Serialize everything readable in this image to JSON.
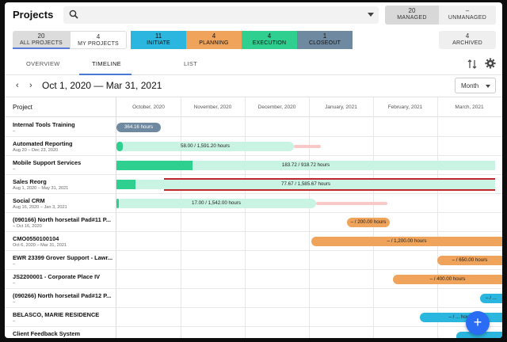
{
  "header": {
    "title": "Projects",
    "search_placeholder": "",
    "managed": {
      "count": "20",
      "label": "MANAGED"
    },
    "unmanaged": {
      "count": "–",
      "label": "UNMANAGED"
    }
  },
  "filters": {
    "all": {
      "count": "20",
      "label": "ALL PROJECTS"
    },
    "mine": {
      "count": "4",
      "label": "MY PROJECTS"
    },
    "initiate": {
      "count": "11",
      "label": "INITIATE",
      "color": "#2bb6e0"
    },
    "planning": {
      "count": "4",
      "label": "PLANNING",
      "color": "#f0a35a"
    },
    "execution": {
      "count": "4",
      "label": "EXECUTION",
      "color": "#2fcf8f"
    },
    "closeout": {
      "count": "1",
      "label": "CLOSEOUT",
      "color": "#6f8aa0"
    },
    "archived": {
      "count": "4",
      "label": "ARCHIVED"
    }
  },
  "tabs": [
    "OVERVIEW",
    "TIMELINE",
    "LIST"
  ],
  "timeline": {
    "range": "Oct 1, 2020 — Mar 31, 2021",
    "scale": "Month",
    "project_col": "Project",
    "months": [
      "October, 2020",
      "November, 2020",
      "December, 2020",
      "January, 2021",
      "February, 2021",
      "March, 2021"
    ]
  },
  "colors": {
    "execution_fill": "#2fcf8f",
    "execution_light": "#c9f3e2",
    "planning": "#f0a35a",
    "initiate": "#2bb6e0",
    "closeout": "#6f8aa0",
    "overdue": "#c0262d",
    "overdue_light": "#f8c9c6"
  },
  "projects": [
    {
      "name": "Internal Tools Training",
      "dates": "–",
      "label": "364.16 hours",
      "status": "closeout"
    },
    {
      "name": "Automated Reporting",
      "dates": "Aug 20 – Dec 23, 2020",
      "label": "58.00 / 1,591.20 hours",
      "status": "execution"
    },
    {
      "name": "Mobile Support Services",
      "dates": "–",
      "label": "183.72 / 918.72 hours",
      "status": "execution"
    },
    {
      "name": "Sales Reorg",
      "dates": "Aug 1, 2020 – May 31, 2021",
      "label": "77.67 / 1,585.67 hours",
      "status": "execution"
    },
    {
      "name": "Social CRM",
      "dates": "Aug 16, 2020 – Jan 3, 2021",
      "label": "17.00 / 1,542.00 hours",
      "status": "execution"
    },
    {
      "name": "(090166) North horsetail Pad#11 P...",
      "dates": "– Oct 16, 2020",
      "label": "– / 200.00 hours",
      "status": "planning"
    },
    {
      "name": "CMO0550100104",
      "dates": "Oct 6, 2020 – Mar 31, 2021",
      "label": "– / 1,200.00 hours",
      "status": "planning"
    },
    {
      "name": "EWR 23399 Grover Support - Lawr...",
      "dates": "–",
      "label": "– / 650.00 hours",
      "status": "planning"
    },
    {
      "name": "JS2200001 - Corporate Place IV",
      "dates": "–",
      "label": "– / 400.00 hours",
      "status": "planning"
    },
    {
      "name": "(090266) North horsetail Pad#12 P...",
      "dates": "–",
      "label": "– / ...",
      "status": "initiate"
    },
    {
      "name": "BELASCO, MARIE RESIDENCE",
      "dates": "–",
      "label": "– / ... hours",
      "status": "initiate"
    },
    {
      "name": "Client Feedback System",
      "dates": "–",
      "label": "",
      "status": "initiate"
    }
  ],
  "fab_label": "+"
}
